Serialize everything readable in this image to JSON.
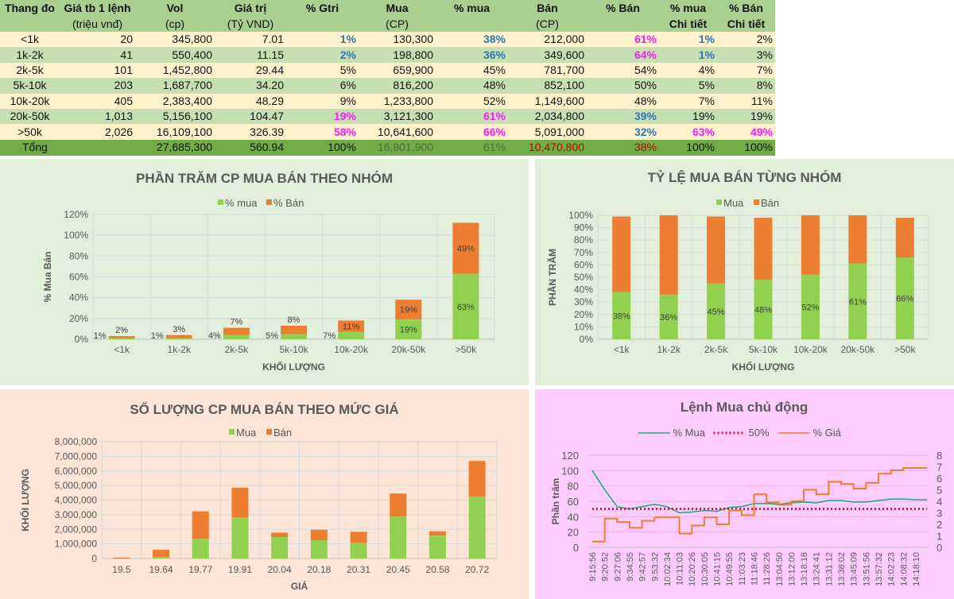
{
  "table": {
    "headers": [
      [
        "Thang đo",
        ""
      ],
      [
        "Giá tb 1 lệnh",
        "(triệu vnđ)"
      ],
      [
        "Vol",
        "(cp)"
      ],
      [
        "Giá trị",
        "(Tỷ VND)"
      ],
      [
        "% Gtri",
        ""
      ],
      [
        "Mua",
        "(CP)"
      ],
      [
        "% mua",
        ""
      ],
      [
        "Bán",
        "(CP)"
      ],
      [
        "% Bán",
        ""
      ],
      [
        "% mua",
        "Chi tiết"
      ],
      [
        "% Bán",
        "Chi tiết"
      ]
    ],
    "rows": [
      [
        "<1k",
        "20",
        "345,800",
        "7.01",
        "1%",
        "130,300",
        "38%",
        "212,000",
        "61%",
        "1%",
        "2%"
      ],
      [
        "1k-2k",
        "41",
        "550,400",
        "11.15",
        "2%",
        "198,800",
        "36%",
        "349,600",
        "64%",
        "1%",
        "3%"
      ],
      [
        "2k-5k",
        "101",
        "1,452,800",
        "29.44",
        "5%",
        "659,900",
        "45%",
        "781,700",
        "54%",
        "4%",
        "7%"
      ],
      [
        "5k-10k",
        "203",
        "1,687,700",
        "34.20",
        "6%",
        "816,200",
        "48%",
        "852,100",
        "50%",
        "5%",
        "8%"
      ],
      [
        "10k-20k",
        "405",
        "2,383,400",
        "48.29",
        "9%",
        "1,233,800",
        "52%",
        "1,149,600",
        "48%",
        "7%",
        "11%"
      ],
      [
        "20k-50k",
        "1,013",
        "5,156,100",
        "104.47",
        "19%",
        "3,121,300",
        "61%",
        "2,034,800",
        "39%",
        "19%",
        "19%"
      ],
      [
        ">50k",
        "2,026",
        "16,109,100",
        "326.39",
        "58%",
        "10,641,600",
        "66%",
        "5,091,000",
        "32%",
        "63%",
        "49%"
      ]
    ],
    "row_emphasis": [
      [
        "",
        "",
        "",
        "",
        "b",
        "",
        "b",
        "",
        "m",
        "b",
        ""
      ],
      [
        "",
        "",
        "",
        "",
        "b",
        "",
        "b",
        "",
        "m",
        "b",
        ""
      ],
      [
        "",
        "",
        "",
        "",
        "",
        "",
        "",
        "",
        "",
        "",
        ""
      ],
      [
        "",
        "",
        "",
        "",
        "",
        "",
        "",
        "",
        "",
        "",
        ""
      ],
      [
        "",
        "",
        "",
        "",
        "",
        "",
        "",
        "",
        "",
        "",
        ""
      ],
      [
        "",
        "",
        "",
        "",
        "m",
        "",
        "m",
        "",
        "b",
        "",
        ""
      ],
      [
        "",
        "",
        "",
        "",
        "m",
        "",
        "m",
        "",
        "b",
        "m",
        "m"
      ]
    ],
    "total": [
      "Tổng",
      "",
      "27,685,300",
      "560.94",
      "100%",
      "16,801,900",
      "61%",
      "10,470,800",
      "38%",
      "100%",
      "100%"
    ],
    "total_emphasis": [
      "",
      "",
      "",
      "",
      "",
      "g",
      "g",
      "r",
      "r",
      "",
      ""
    ]
  },
  "colors": {
    "header_bg": "#a9d08e",
    "row_odd_bg": "#fff2cc",
    "row_even_bg": "#c6e0b4",
    "total_bg": "#70ad47",
    "emphasis_blue": "#2e75b6",
    "emphasis_magenta": "#ff19ff",
    "mua_bar": "#92d050",
    "ban_bar": "#ed7d31",
    "mua_line": "#1fa67a",
    "fifty_line": "#e0102f",
    "gia_line": "#ed7d31"
  },
  "chart_data": [
    {
      "type": "bar",
      "stacked": true,
      "title": "PHẦN TRĂM CP MUA BÁN THEO NHÓM",
      "xlabel": "KHỐI LƯỢNG",
      "ylabel": "% Mua Bán",
      "categories": [
        "<1k",
        "1k-2k",
        "2k-5k",
        "5k-10k",
        "10k-20k",
        "20k-50k",
        ">50k"
      ],
      "series": [
        {
          "name": "% mua",
          "values": [
            1,
            1,
            4,
            5,
            7,
            19,
            63
          ],
          "color": "#92d050",
          "data_labels": true
        },
        {
          "name": "% Bán",
          "values": [
            2,
            3,
            7,
            8,
            11,
            19,
            49
          ],
          "color": "#ed7d31",
          "data_labels": true
        }
      ],
      "ylim": [
        0,
        120
      ],
      "yticks": [
        "0%",
        "20%",
        "40%",
        "60%",
        "80%",
        "100%",
        "120%"
      ],
      "grid": true,
      "legend": "top",
      "background": "#e2efda"
    },
    {
      "type": "bar",
      "stacked": true,
      "title": "TỶ LỆ MUA BÁN TỪNG NHÓM",
      "xlabel": "KHỐI LƯỢNG",
      "ylabel": "PHẦN TRĂM",
      "categories": [
        "<1k",
        "1k-2k",
        "2k-5k",
        "5k-10k",
        "10k-20k",
        "20k-50k",
        ">50k"
      ],
      "series": [
        {
          "name": "Mua",
          "values": [
            38,
            36,
            45,
            48,
            52,
            61,
            66
          ],
          "color": "#92d050",
          "data_labels": true
        },
        {
          "name": "Bán",
          "values": [
            61,
            64,
            54,
            50,
            48,
            39,
            32
          ],
          "color": "#ed7d31",
          "data_labels": false
        }
      ],
      "ylim": [
        0,
        100
      ],
      "yticks": [
        "0%",
        "10%",
        "20%",
        "30%",
        "40%",
        "50%",
        "60%",
        "70%",
        "80%",
        "90%",
        "100%"
      ],
      "grid": true,
      "legend": "top",
      "background": "#e2efda"
    },
    {
      "type": "bar",
      "stacked": true,
      "title": "SỐ LƯỢNG CP MUA BÁN THEO MỨC GIÁ",
      "xlabel": "GIÁ",
      "ylabel": "KHỐI LƯỢNG",
      "categories": [
        "19.5",
        "19.64",
        "19.77",
        "19.91",
        "20.04",
        "20.18",
        "20.31",
        "20.45",
        "20.58",
        "20.72"
      ],
      "series": [
        {
          "name": "Mua",
          "values": [
            10000,
            120000,
            1350000,
            2830000,
            1470000,
            1250000,
            1070000,
            2870000,
            1570000,
            4250000
          ],
          "color": "#92d050",
          "data_labels": false
        },
        {
          "name": "Bán",
          "values": [
            50000,
            480000,
            1880000,
            2020000,
            300000,
            720000,
            760000,
            1580000,
            300000,
            2430000
          ],
          "color": "#ed7d31",
          "data_labels": false
        }
      ],
      "ylim": [
        0,
        8000000
      ],
      "yticks": [
        "0",
        "1,000,000",
        "2,000,000",
        "3,000,000",
        "4,000,000",
        "5,000,000",
        "6,000,000",
        "7,000,000",
        "8,000,000"
      ],
      "grid": true,
      "legend": "top",
      "background": "#fce4d6"
    },
    {
      "type": "line",
      "title": "Lệnh Mua chủ động",
      "ylabel": "Phần trăm",
      "categories": [
        "9:15:56",
        "9:20:52",
        "9:27:06",
        "9:34:55",
        "9:42:57",
        "9:53:32",
        "10:02:34",
        "10:11:03",
        "10:20:26",
        "10:30:05",
        "10:41:15",
        "10:49:55",
        "11:03:23",
        "11:18:46",
        "11:28:26",
        "13:04:50",
        "13:12:00",
        "13:18:18",
        "13:24:41",
        "13:31:12",
        "13:38:02",
        "13:45:09",
        "13:51:56",
        "13:57:32",
        "14:02:23",
        "14:08:32",
        "14:18:10"
      ],
      "series": [
        {
          "name": "% Mua",
          "axis": "left",
          "style": "solid",
          "color": "#1fa67a",
          "values": [
            100,
            75,
            53,
            50,
            53,
            56,
            53,
            45,
            46,
            48,
            47,
            52,
            53,
            57,
            57,
            56,
            58,
            59,
            58,
            61,
            61,
            59,
            59,
            61,
            63,
            63,
            62
          ]
        },
        {
          "name": "50%",
          "axis": "left",
          "style": "dotted",
          "color": "#e0102f",
          "values": [
            50,
            50,
            50,
            50,
            50,
            50,
            50,
            50,
            50,
            50,
            50,
            50,
            50,
            50,
            50,
            50,
            50,
            50,
            50,
            50,
            50,
            50,
            50,
            50,
            50,
            50,
            50
          ]
        },
        {
          "name": "% Giá",
          "axis": "right",
          "style": "solid",
          "color": "#ed7d31",
          "values": [
            0.5,
            2.5,
            2.2,
            1.7,
            2.3,
            2.6,
            2.6,
            1.2,
            1.9,
            2.6,
            2.0,
            3.2,
            2.8,
            4.6,
            3.9,
            3.7,
            4.0,
            5.0,
            4.6,
            5.7,
            5.5,
            5.1,
            5.6,
            6.4,
            6.7,
            6.9,
            6.9
          ]
        }
      ],
      "ylim": [
        0,
        120
      ],
      "yticks": [
        "0",
        "20",
        "40",
        "60",
        "80",
        "100",
        "120"
      ],
      "y2lim": [
        0,
        8
      ],
      "y2ticks": [
        "0",
        "1",
        "2",
        "3",
        "4",
        "5",
        "6",
        "7",
        "8"
      ],
      "grid": true,
      "legend": "top",
      "background": "#ffccff"
    }
  ]
}
